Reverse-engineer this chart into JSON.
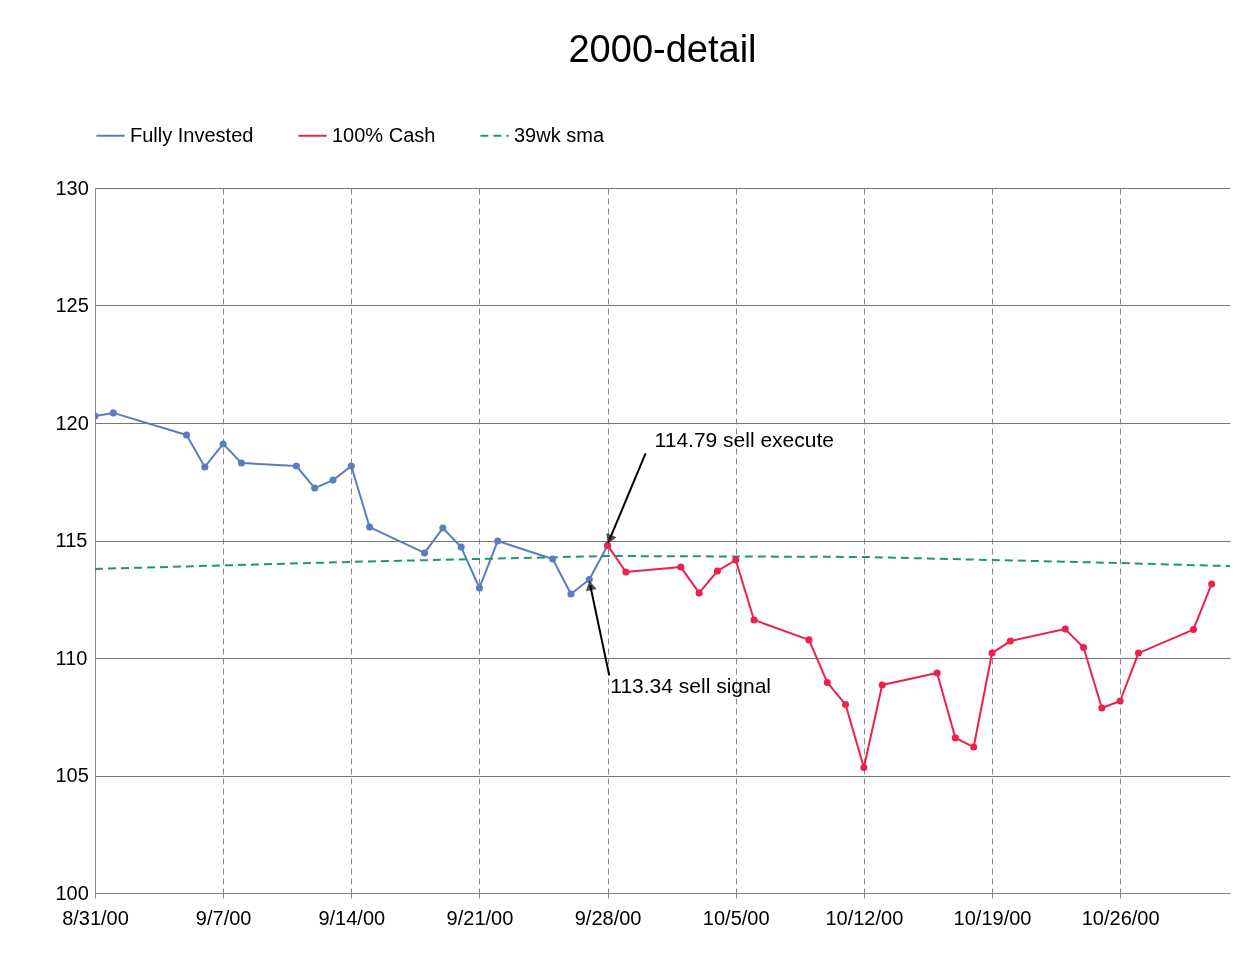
{
  "chart_data": {
    "type": "line",
    "title": "2000-detail",
    "xlim": [
      "2000-08-31",
      "2000-11-01"
    ],
    "xticks": [
      {
        "value": "2000-08-31",
        "label": "8/31/00"
      },
      {
        "value": "2000-09-07",
        "label": "9/7/00"
      },
      {
        "value": "2000-09-14",
        "label": "9/14/00"
      },
      {
        "value": "2000-09-21",
        "label": "9/21/00"
      },
      {
        "value": "2000-09-28",
        "label": "9/28/00"
      },
      {
        "value": "2000-10-05",
        "label": "10/5/00"
      },
      {
        "value": "2000-10-12",
        "label": "10/12/00"
      },
      {
        "value": "2000-10-19",
        "label": "10/19/00"
      },
      {
        "value": "2000-10-26",
        "label": "10/26/00"
      }
    ],
    "ylim": [
      100,
      130
    ],
    "yticks": [
      100,
      105,
      110,
      115,
      120,
      125,
      130
    ],
    "grid": true,
    "legend": "top",
    "line_style": "solid",
    "series": [
      {
        "name": "Fully Invested",
        "color": "#5b7cc0",
        "marker": "circle",
        "x": [
          "2000-08-31",
          "2000-09-01",
          "2000-09-05",
          "2000-09-06",
          "2000-09-07",
          "2000-09-08",
          "2000-09-11",
          "2000-09-12",
          "2000-09-13",
          "2000-09-14",
          "2000-09-15",
          "2000-09-18",
          "2000-09-19",
          "2000-09-20",
          "2000-09-21",
          "2000-09-22",
          "2000-09-25",
          "2000-09-26",
          "2000-09-27",
          "2000-09-28"
        ],
        "values": [
          120.3,
          120.43,
          119.49,
          118.13,
          119.11,
          118.3,
          118.17,
          117.23,
          117.57,
          118.17,
          115.57,
          114.47,
          115.53,
          114.72,
          112.98,
          114.98,
          114.21,
          112.72,
          113.34,
          114.79
        ]
      },
      {
        "name": "100% Cash",
        "color": "#f0204e",
        "marker": "circle",
        "x": [
          "2000-09-28",
          "2000-09-29",
          "2000-10-02",
          "2000-10-03",
          "2000-10-04",
          "2000-10-05",
          "2000-10-06",
          "2000-10-09",
          "2000-10-10",
          "2000-10-11",
          "2000-10-12",
          "2000-10-13",
          "2000-10-16",
          "2000-10-17",
          "2000-10-18",
          "2000-10-19",
          "2000-10-20",
          "2000-10-23",
          "2000-10-24",
          "2000-10-25",
          "2000-10-26",
          "2000-10-27",
          "2000-10-30",
          "2000-10-31"
        ],
        "values": [
          114.79,
          113.66,
          113.87,
          112.77,
          113.7,
          114.17,
          111.62,
          110.77,
          108.96,
          108.02,
          105.34,
          108.85,
          109.36,
          106.6,
          106.21,
          110.21,
          110.72,
          111.23,
          110.45,
          107.87,
          108.17,
          110.21,
          111.21,
          113.15
        ]
      },
      {
        "name": "39wk sma",
        "color": "#1a9a6a",
        "marker": "none",
        "line_style": "dashed",
        "x": [
          "2000-08-31",
          "2000-09-14",
          "2000-09-28",
          "2000-10-12",
          "2000-10-26",
          "2000-11-01"
        ],
        "values": [
          113.79,
          114.09,
          114.34,
          114.3,
          114.04,
          113.91
        ]
      }
    ],
    "annotations": [
      {
        "text": "114.79 sell execute",
        "x": "2000-09-28",
        "y": 114.79
      },
      {
        "text": "113.34 sell signal",
        "x": "2000-09-27",
        "y": 113.34
      }
    ]
  }
}
